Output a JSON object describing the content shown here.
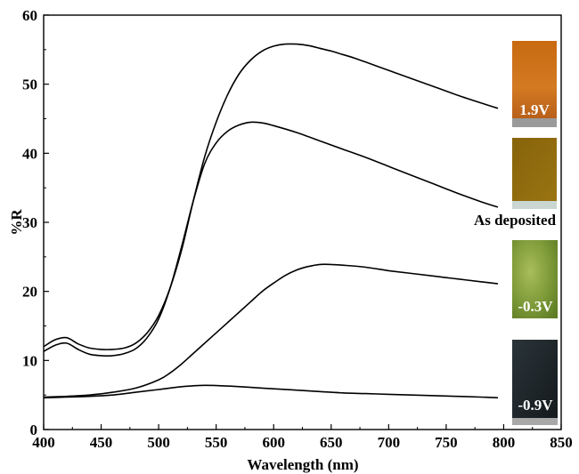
{
  "chart_data": {
    "type": "line",
    "xlabel": "Wavelength (nm)",
    "ylabel": "%R",
    "xlim": [
      400,
      850
    ],
    "ylim": [
      0,
      60
    ],
    "xticks": [
      400,
      450,
      500,
      550,
      600,
      650,
      700,
      750,
      800,
      850
    ],
    "yticks": [
      0,
      10,
      20,
      30,
      40,
      50,
      60
    ],
    "xtick_labels": [
      "400",
      "450",
      "500",
      "550",
      "600",
      "650",
      "700",
      "750",
      "800",
      "850"
    ],
    "ytick_labels": [
      "0",
      "10",
      "20",
      "30",
      "40",
      "50",
      "60"
    ],
    "grid": false,
    "series": [
      {
        "name": "1.9V",
        "x": [
          400,
          410,
          420,
          430,
          440,
          450,
          460,
          470,
          480,
          490,
          500,
          510,
          520,
          530,
          540,
          550,
          560,
          570,
          580,
          590,
          600,
          610,
          620,
          630,
          640,
          650,
          660,
          670,
          680,
          700,
          720,
          740,
          760,
          780,
          795
        ],
        "y": [
          12.0,
          13.0,
          13.3,
          12.4,
          11.8,
          11.6,
          11.6,
          11.8,
          12.5,
          14.0,
          16.5,
          20.5,
          26.0,
          33.0,
          39.5,
          44.5,
          48.5,
          51.5,
          53.5,
          54.8,
          55.5,
          55.8,
          55.8,
          55.6,
          55.2,
          54.8,
          54.3,
          53.8,
          53.2,
          52.0,
          50.8,
          49.6,
          48.4,
          47.3,
          46.5
        ]
      },
      {
        "name": "As deposited",
        "x": [
          400,
          410,
          420,
          430,
          440,
          450,
          460,
          470,
          480,
          490,
          500,
          510,
          520,
          530,
          540,
          550,
          560,
          570,
          580,
          590,
          600,
          620,
          640,
          660,
          680,
          700,
          720,
          740,
          760,
          780,
          795
        ],
        "y": [
          11.3,
          12.2,
          12.5,
          11.6,
          10.9,
          10.7,
          10.7,
          11.0,
          11.7,
          13.3,
          16.0,
          20.5,
          26.5,
          33.0,
          38.5,
          41.5,
          43.2,
          44.1,
          44.5,
          44.4,
          44.0,
          43.0,
          41.8,
          40.6,
          39.4,
          38.1,
          36.8,
          35.5,
          34.2,
          33.0,
          32.2
        ]
      },
      {
        "name": "-0.3V",
        "x": [
          400,
          420,
          440,
          460,
          480,
          500,
          510,
          520,
          530,
          540,
          550,
          560,
          570,
          580,
          590,
          600,
          610,
          620,
          630,
          640,
          650,
          660,
          680,
          700,
          720,
          740,
          760,
          780,
          795
        ],
        "y": [
          4.7,
          4.8,
          5.0,
          5.4,
          6.0,
          7.2,
          8.2,
          9.5,
          11.0,
          12.5,
          14.0,
          15.5,
          17.0,
          18.5,
          20.0,
          21.2,
          22.3,
          23.1,
          23.6,
          23.9,
          23.9,
          23.8,
          23.5,
          23.0,
          22.6,
          22.2,
          21.8,
          21.4,
          21.1
        ]
      },
      {
        "name": "-0.9V",
        "x": [
          400,
          420,
          440,
          460,
          480,
          500,
          520,
          540,
          560,
          580,
          600,
          620,
          640,
          660,
          680,
          700,
          720,
          740,
          760,
          780,
          795
        ],
        "y": [
          4.6,
          4.7,
          4.8,
          5.0,
          5.4,
          5.8,
          6.2,
          6.4,
          6.3,
          6.1,
          5.9,
          5.7,
          5.5,
          5.3,
          5.2,
          5.1,
          5.0,
          4.9,
          4.8,
          4.7,
          4.6
        ]
      }
    ],
    "annotations": [
      {
        "label": "1.9V",
        "color": "#c96d12"
      },
      {
        "label": "As deposited",
        "color": "#8e6a0c"
      },
      {
        "label": "-0.3V",
        "color": "#7d9a3a"
      },
      {
        "label": "-0.9V",
        "color": "#1c2428"
      }
    ]
  }
}
